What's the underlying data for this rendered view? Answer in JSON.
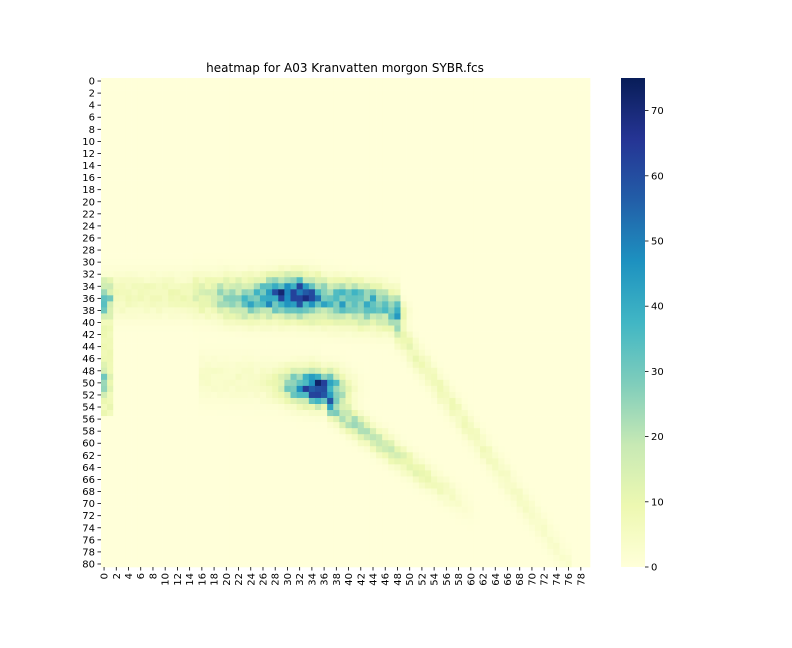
{
  "chart_data": {
    "type": "heatmap",
    "title": "heatmap for A03 Kranvatten morgon SYBR.fcs",
    "xlabel": "",
    "ylabel": "",
    "x_tick_labels": [
      "0",
      "2",
      "4",
      "6",
      "8",
      "10",
      "12",
      "14",
      "16",
      "18",
      "20",
      "22",
      "24",
      "26",
      "28",
      "30",
      "32",
      "34",
      "36",
      "38",
      "40",
      "42",
      "44",
      "46",
      "48",
      "50",
      "52",
      "54",
      "56",
      "58",
      "60",
      "62",
      "64",
      "66",
      "68",
      "70",
      "72",
      "74",
      "76",
      "78"
    ],
    "y_tick_labels": [
      "0",
      "2",
      "4",
      "6",
      "8",
      "10",
      "12",
      "14",
      "16",
      "18",
      "20",
      "22",
      "24",
      "26",
      "28",
      "30",
      "32",
      "34",
      "36",
      "38",
      "40",
      "42",
      "44",
      "46",
      "48",
      "50",
      "52",
      "54",
      "56",
      "58",
      "60",
      "62",
      "64",
      "66",
      "68",
      "70",
      "72",
      "74",
      "76",
      "78",
      "80"
    ],
    "n_cols": 80,
    "n_rows": 81,
    "colormap": "YlGnBu",
    "colorbar": {
      "min": 0,
      "max": 75,
      "ticks": [
        "0",
        "10",
        "20",
        "30",
        "40",
        "50",
        "60",
        "70"
      ]
    },
    "grid": false,
    "legend": "none",
    "structures": [
      {
        "name": "upper band",
        "row_range": [
          32,
          40
        ],
        "col_range": [
          0,
          48
        ],
        "peak_value": 70,
        "peak_at": {
          "row": 35,
          "col": 31
        }
      },
      {
        "name": "upper tail",
        "row_range": [
          40,
          80
        ],
        "col_range": [
          47,
          76
        ],
        "peak_value": 12
      },
      {
        "name": "lower cluster",
        "row_range": [
          48,
          56
        ],
        "col_range": [
          27,
          40
        ],
        "peak_value": 75,
        "peak_at": {
          "row": 51,
          "col": 36
        }
      },
      {
        "name": "lower tail",
        "row_range": [
          54,
          72
        ],
        "col_range": [
          36,
          60
        ],
        "peak_value": 35
      },
      {
        "name": "left edge ridge",
        "row_range": [
          32,
          55
        ],
        "col_range": [
          0,
          1
        ],
        "peak_value": 38
      }
    ]
  }
}
